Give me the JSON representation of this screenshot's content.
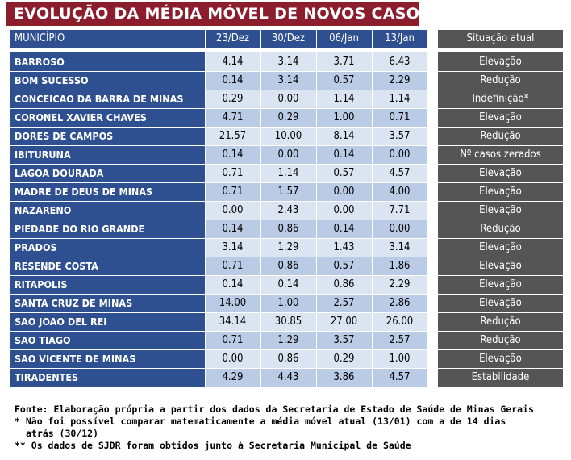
{
  "title": "EVOLUÇÃO DA MÉDIA MÓVEL DE NOVOS CASOS",
  "headers": {
    "municipio": "MUNICÍPIO",
    "d1": "23/Dez",
    "d2": "30/Dez",
    "d3": "06/Jan",
    "d4": "13/Jan",
    "situacao": "Situação atual"
  },
  "rows": [
    {
      "name": "BARROSO",
      "v": [
        "4.14",
        "3.14",
        "3.71",
        "6.43"
      ],
      "status": "Elevação"
    },
    {
      "name": "BOM SUCESSO",
      "v": [
        "0.14",
        "3.14",
        "0.57",
        "2.29"
      ],
      "status": "Redução"
    },
    {
      "name": "CONCEICAO DA BARRA DE MINAS",
      "v": [
        "0.29",
        "0.00",
        "1.14",
        "1.14"
      ],
      "status": "Indefinição*"
    },
    {
      "name": "CORONEL XAVIER CHAVES",
      "v": [
        "4.71",
        "0.29",
        "1.00",
        "0.71"
      ],
      "status": "Elevação"
    },
    {
      "name": "DORES DE CAMPOS",
      "v": [
        "21.57",
        "10.00",
        "8.14",
        "3.57"
      ],
      "status": "Redução"
    },
    {
      "name": "IBITURUNA",
      "v": [
        "0.14",
        "0.00",
        "0.14",
        "0.00"
      ],
      "status": "Nº casos zerados"
    },
    {
      "name": "LAGOA DOURADA",
      "v": [
        "0.71",
        "1.14",
        "0.57",
        "4.57"
      ],
      "status": "Elevação"
    },
    {
      "name": "MADRE DE DEUS DE MINAS",
      "v": [
        "0.71",
        "1.57",
        "0.00",
        "4.00"
      ],
      "status": "Elevação"
    },
    {
      "name": "NAZARENO",
      "v": [
        "0.00",
        "2.43",
        "0.00",
        "7.71"
      ],
      "status": "Elevação"
    },
    {
      "name": "PIEDADE DO RIO GRANDE",
      "v": [
        "0.14",
        "0.86",
        "0.14",
        "0.00"
      ],
      "status": "Redução"
    },
    {
      "name": "PRADOS",
      "v": [
        "3.14",
        "1.29",
        "1.43",
        "3.14"
      ],
      "status": "Elevação"
    },
    {
      "name": "RESENDE COSTA",
      "v": [
        "0.71",
        "0.86",
        "0.57",
        "1.86"
      ],
      "status": "Elevação"
    },
    {
      "name": "RITAPOLIS",
      "v": [
        "0.14",
        "0.14",
        "0.86",
        "2.29"
      ],
      "status": "Elevação"
    },
    {
      "name": "SANTA CRUZ DE MINAS",
      "v": [
        "14.00",
        "1.00",
        "2.57",
        "2.86"
      ],
      "status": "Elevação"
    },
    {
      "name": "SAO JOAO DEL REI",
      "v": [
        "34.14",
        "30.85",
        "27.00",
        "26.00"
      ],
      "status": "Redução"
    },
    {
      "name": "SAO TIAGO",
      "v": [
        "0.71",
        "1.29",
        "3.57",
        "2.57"
      ],
      "status": "Redução"
    },
    {
      "name": "SAO VICENTE DE MINAS",
      "v": [
        "0.00",
        "0.86",
        "0.29",
        "1.00"
      ],
      "status": "Elevação"
    },
    {
      "name": "TIRADENTES",
      "v": [
        "4.29",
        "4.43",
        "3.86",
        "4.57"
      ],
      "status": "Estabilidade"
    }
  ],
  "notes": {
    "source": "Fonte: Elaboração própria a partir dos dados da Secretaria de Estado de Saúde de Minas Gerais",
    "note1_a": "* Não foi possível comparar matematicamente a média móvel atual (13/01) com a de 14 dias",
    "note1_b": "atrás (30/12)",
    "note2": "** Os dados de SJDR foram obtidos junto à Secretaria Municipal de Saúde"
  },
  "colors": {
    "title_bg": "#8b1d2c",
    "name_bg": "#2f5090",
    "val_light": "#dbe4f1",
    "val_dark": "#b9cbe5",
    "status_bg": "#555555"
  }
}
